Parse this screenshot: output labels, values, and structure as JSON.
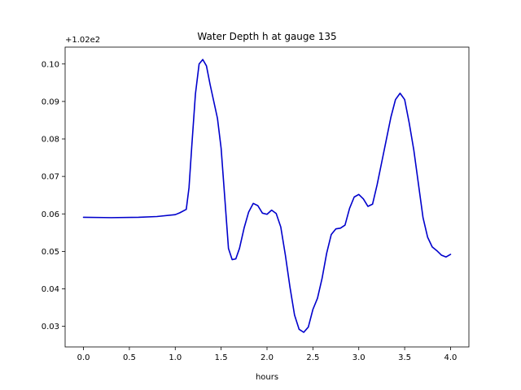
{
  "chart_data": {
    "type": "line",
    "title": "Water Depth h at gauge 135",
    "xlabel": "hours",
    "ylabel": "",
    "offset_text": "+1.02e2",
    "xlim": [
      -0.2,
      4.2
    ],
    "ylim": [
      0.0245,
      0.1045
    ],
    "xticks": [
      0.0,
      0.5,
      1.0,
      1.5,
      2.0,
      2.5,
      3.0,
      3.5,
      4.0
    ],
    "xtick_labels": [
      "0.0",
      "0.5",
      "1.0",
      "1.5",
      "2.0",
      "2.5",
      "3.0",
      "3.5",
      "4.0"
    ],
    "yticks": [
      0.03,
      0.04,
      0.05,
      0.06,
      0.07,
      0.08,
      0.09,
      0.1
    ],
    "ytick_labels": [
      "0.03",
      "0.04",
      "0.05",
      "0.06",
      "0.07",
      "0.08",
      "0.09",
      "0.10"
    ],
    "grid": false,
    "series": [
      {
        "color": "#0000cc",
        "x": [
          0.0,
          0.3,
          0.6,
          0.8,
          1.0,
          1.05,
          1.12,
          1.15,
          1.18,
          1.22,
          1.26,
          1.3,
          1.34,
          1.38,
          1.42,
          1.46,
          1.5,
          1.54,
          1.58,
          1.62,
          1.66,
          1.7,
          1.75,
          1.8,
          1.85,
          1.9,
          1.95,
          2.0,
          2.05,
          2.1,
          2.15,
          2.2,
          2.25,
          2.3,
          2.35,
          2.4,
          2.45,
          2.5,
          2.55,
          2.6,
          2.65,
          2.7,
          2.75,
          2.8,
          2.85,
          2.9,
          2.95,
          3.0,
          3.05,
          3.1,
          3.15,
          3.2,
          3.25,
          3.3,
          3.35,
          3.4,
          3.45,
          3.5,
          3.55,
          3.6,
          3.65,
          3.7,
          3.75,
          3.8,
          3.85,
          3.9,
          3.95,
          4.0
        ],
        "y": [
          0.0591,
          0.059,
          0.0591,
          0.0593,
          0.0598,
          0.0603,
          0.0612,
          0.067,
          0.078,
          0.092,
          0.1,
          0.1012,
          0.0995,
          0.0945,
          0.09,
          0.0855,
          0.0775,
          0.0642,
          0.0508,
          0.0478,
          0.048,
          0.0508,
          0.0562,
          0.0605,
          0.0628,
          0.0622,
          0.0602,
          0.0599,
          0.061,
          0.0601,
          0.0565,
          0.049,
          0.0405,
          0.033,
          0.0292,
          0.0284,
          0.0298,
          0.0345,
          0.0375,
          0.0428,
          0.0495,
          0.0545,
          0.056,
          0.0562,
          0.057,
          0.0615,
          0.0645,
          0.0652,
          0.064,
          0.062,
          0.0626,
          0.0678,
          0.0738,
          0.0798,
          0.0858,
          0.0905,
          0.0922,
          0.0905,
          0.0842,
          0.077,
          0.068,
          0.059,
          0.0538,
          0.0512,
          0.0502,
          0.049,
          0.0485,
          0.0492
        ]
      }
    ]
  }
}
